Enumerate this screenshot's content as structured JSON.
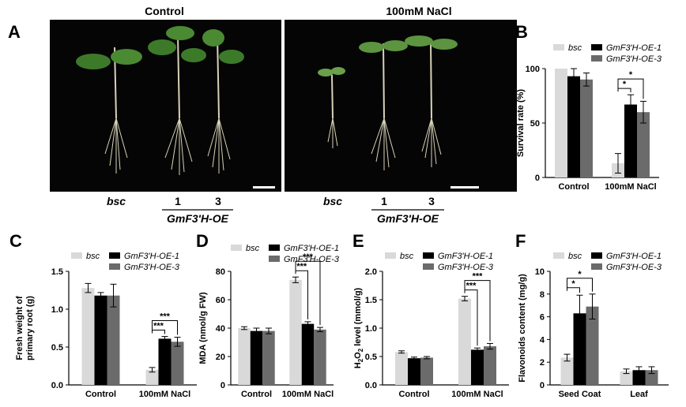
{
  "panel_A": {
    "letter": "A",
    "left_title": "Control",
    "right_title": "100mM NaCl",
    "left_labels": {
      "bsc": "bsc",
      "line1": "1",
      "line3": "3",
      "group": "GmF3'H-OE"
    },
    "right_labels": {
      "bsc": "bsc",
      "line1": "1",
      "line3": "3",
      "group": "GmF3'H-OE"
    }
  },
  "colors": {
    "bsc": "#d9d9d9",
    "oe1": "#000000",
    "oe3": "#6b6b6b",
    "photo_bg": "#050505"
  },
  "chart_data": [
    {
      "panel": "B",
      "type": "bar",
      "ylabel": "Survival rate (%)",
      "ylim": [
        0,
        100
      ],
      "yticks": [
        0,
        50,
        100
      ],
      "categories": [
        "Control",
        "100mM NaCl"
      ],
      "legend": [
        "bsc",
        "GmF3'H-OE-1",
        "GmF3'H-OE-3"
      ],
      "series": [
        {
          "name": "bsc",
          "values": [
            100,
            13
          ],
          "errors": [
            0,
            9
          ]
        },
        {
          "name": "GmF3'H-OE-1",
          "values": [
            93,
            67
          ],
          "errors": [
            7,
            9
          ]
        },
        {
          "name": "GmF3'H-OE-3",
          "values": [
            90,
            60
          ],
          "errors": [
            6,
            10
          ]
        }
      ],
      "sig": [
        "*",
        "*"
      ]
    },
    {
      "panel": "C",
      "type": "bar",
      "ylabel": "Fresh weight of primary root (g)",
      "ylim": [
        0,
        1.5
      ],
      "yticks": [
        "0.0",
        "0.5",
        "1.0",
        "1.5"
      ],
      "categories": [
        "Control",
        "100mM NaCl"
      ],
      "legend": [
        "bsc",
        "GmF3'H-OE-1",
        "GmF3'H-OE-3"
      ],
      "series": [
        {
          "name": "bsc",
          "values": [
            1.28,
            0.2
          ],
          "errors": [
            0.06,
            0.03
          ]
        },
        {
          "name": "GmF3'H-OE-1",
          "values": [
            1.18,
            0.61
          ],
          "errors": [
            0.04,
            0.03
          ]
        },
        {
          "name": "GmF3'H-OE-3",
          "values": [
            1.18,
            0.57
          ],
          "errors": [
            0.15,
            0.06
          ]
        }
      ],
      "sig": [
        "***",
        "***"
      ]
    },
    {
      "panel": "D",
      "type": "bar",
      "ylabel": "MDA (nmol/g FW)",
      "ylim": [
        0,
        80
      ],
      "yticks": [
        0,
        20,
        40,
        60,
        80
      ],
      "categories": [
        "Control",
        "100mM NaCl"
      ],
      "legend": [
        "bsc",
        "GmF3'H-OE-1",
        "GmF3'H-OE-3"
      ],
      "series": [
        {
          "name": "bsc",
          "values": [
            40,
            74
          ],
          "errors": [
            1,
            2
          ]
        },
        {
          "name": "GmF3'H-OE-1",
          "values": [
            38,
            43
          ],
          "errors": [
            2,
            1.5
          ]
        },
        {
          "name": "GmF3'H-OE-3",
          "values": [
            38,
            39
          ],
          "errors": [
            2,
            1.5
          ]
        }
      ],
      "sig": [
        "***",
        "***"
      ]
    },
    {
      "panel": "E",
      "type": "bar",
      "ylabel": "H2O2 level (mmol/g)",
      "ylim": [
        0,
        2.0
      ],
      "yticks": [
        "0.0",
        "0.5",
        "1.0",
        "1.5",
        "2.0"
      ],
      "categories": [
        "Control",
        "100mM NaCl"
      ],
      "legend": [
        "bsc",
        "GmF3'H-OE-1",
        "GmF3'H-OE-3"
      ],
      "series": [
        {
          "name": "bsc",
          "values": [
            0.58,
            1.52
          ],
          "errors": [
            0.02,
            0.04
          ]
        },
        {
          "name": "GmF3'H-OE-1",
          "values": [
            0.47,
            0.62
          ],
          "errors": [
            0.02,
            0.03
          ]
        },
        {
          "name": "GmF3'H-OE-3",
          "values": [
            0.48,
            0.68
          ],
          "errors": [
            0.02,
            0.05
          ]
        }
      ],
      "sig": [
        "***",
        "***"
      ]
    },
    {
      "panel": "F",
      "type": "bar",
      "ylabel": "Flavonoids content (mg/g)",
      "ylim": [
        0,
        10
      ],
      "yticks": [
        0,
        2,
        4,
        6,
        8,
        10
      ],
      "categories": [
        "Seed Coat",
        "Leaf"
      ],
      "legend": [
        "bsc",
        "GmF3'H-OE-1",
        "GmF3'H-OE-3"
      ],
      "series": [
        {
          "name": "bsc",
          "values": [
            2.4,
            1.2
          ],
          "errors": [
            0.3,
            0.2
          ]
        },
        {
          "name": "GmF3'H-OE-1",
          "values": [
            6.3,
            1.3
          ],
          "errors": [
            1.6,
            0.3
          ]
        },
        {
          "name": "GmF3'H-OE-3",
          "values": [
            6.9,
            1.3
          ],
          "errors": [
            1.1,
            0.3
          ]
        }
      ],
      "sig": [
        "*",
        "*"
      ]
    }
  ]
}
